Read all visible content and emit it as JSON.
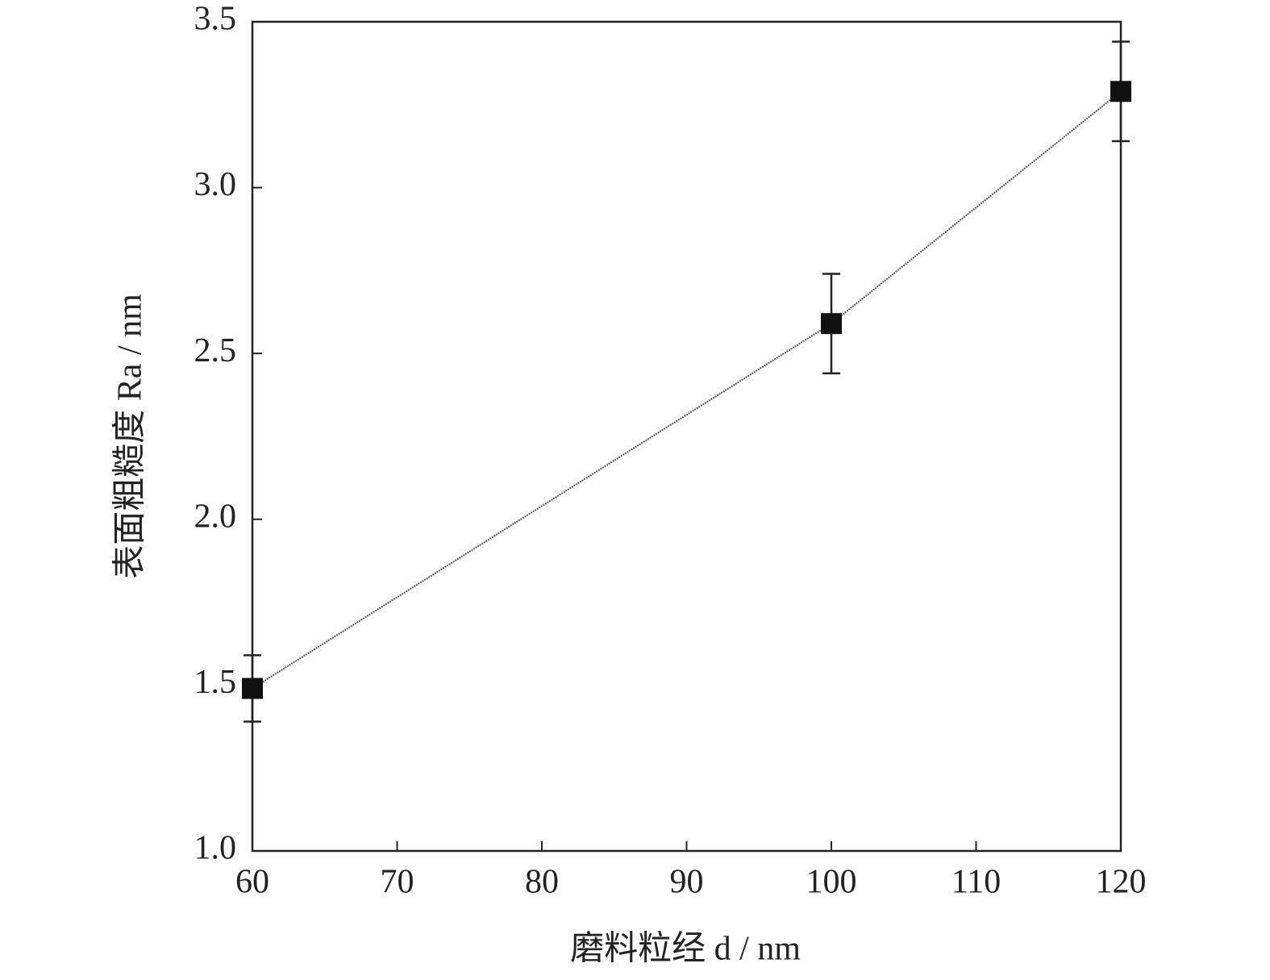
{
  "chart_data": {
    "type": "line",
    "x_label": "磨料粒经 d / nm",
    "y_label": "表面粗糙度 Ra / nm",
    "x": [
      60,
      100,
      120
    ],
    "values": [
      1.49,
      2.59,
      3.29
    ],
    "errors": [
      0.1,
      0.15,
      0.15
    ],
    "color": "#111111",
    "xlim": [
      60,
      120
    ],
    "xticks": [
      60,
      70,
      80,
      90,
      100,
      110,
      120
    ],
    "ylim": [
      1,
      3.5
    ],
    "yticks": [
      {
        "value": 1,
        "label": "1.0"
      },
      1.5,
      {
        "value": 2,
        "label": "2.0"
      },
      2.5,
      {
        "value": 3,
        "label": "3.0"
      },
      3.5
    ],
    "grid": false
  }
}
